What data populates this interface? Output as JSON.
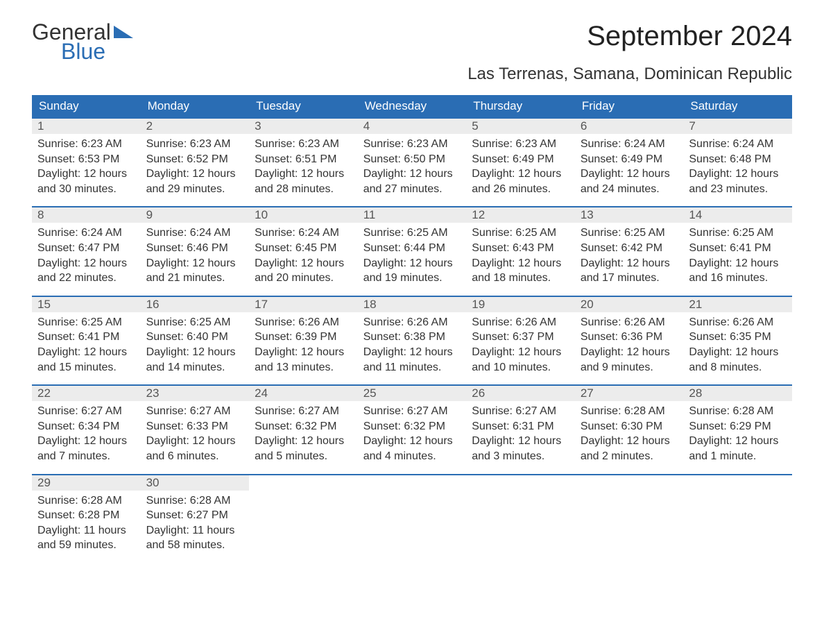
{
  "brand": {
    "part1": "General",
    "part2": "Blue",
    "text_color": "#333333",
    "accent_color": "#2a6db4"
  },
  "header": {
    "month_title": "September 2024",
    "location": "Las Terrenas, Samana, Dominican Republic",
    "title_fontsize": 40,
    "location_fontsize": 24
  },
  "colors": {
    "header_bg": "#2a6db4",
    "header_text": "#ffffff",
    "daynum_bg": "#ececec",
    "border_top": "#2a6db4",
    "body_text": "#333333",
    "background": "#ffffff"
  },
  "calendar": {
    "type": "table",
    "columns": [
      "Sunday",
      "Monday",
      "Tuesday",
      "Wednesday",
      "Thursday",
      "Friday",
      "Saturday"
    ],
    "weeks": [
      [
        {
          "day": "1",
          "sunrise": "Sunrise: 6:23 AM",
          "sunset": "Sunset: 6:53 PM",
          "dl1": "Daylight: 12 hours",
          "dl2": "and 30 minutes."
        },
        {
          "day": "2",
          "sunrise": "Sunrise: 6:23 AM",
          "sunset": "Sunset: 6:52 PM",
          "dl1": "Daylight: 12 hours",
          "dl2": "and 29 minutes."
        },
        {
          "day": "3",
          "sunrise": "Sunrise: 6:23 AM",
          "sunset": "Sunset: 6:51 PM",
          "dl1": "Daylight: 12 hours",
          "dl2": "and 28 minutes."
        },
        {
          "day": "4",
          "sunrise": "Sunrise: 6:23 AM",
          "sunset": "Sunset: 6:50 PM",
          "dl1": "Daylight: 12 hours",
          "dl2": "and 27 minutes."
        },
        {
          "day": "5",
          "sunrise": "Sunrise: 6:23 AM",
          "sunset": "Sunset: 6:49 PM",
          "dl1": "Daylight: 12 hours",
          "dl2": "and 26 minutes."
        },
        {
          "day": "6",
          "sunrise": "Sunrise: 6:24 AM",
          "sunset": "Sunset: 6:49 PM",
          "dl1": "Daylight: 12 hours",
          "dl2": "and 24 minutes."
        },
        {
          "day": "7",
          "sunrise": "Sunrise: 6:24 AM",
          "sunset": "Sunset: 6:48 PM",
          "dl1": "Daylight: 12 hours",
          "dl2": "and 23 minutes."
        }
      ],
      [
        {
          "day": "8",
          "sunrise": "Sunrise: 6:24 AM",
          "sunset": "Sunset: 6:47 PM",
          "dl1": "Daylight: 12 hours",
          "dl2": "and 22 minutes."
        },
        {
          "day": "9",
          "sunrise": "Sunrise: 6:24 AM",
          "sunset": "Sunset: 6:46 PM",
          "dl1": "Daylight: 12 hours",
          "dl2": "and 21 minutes."
        },
        {
          "day": "10",
          "sunrise": "Sunrise: 6:24 AM",
          "sunset": "Sunset: 6:45 PM",
          "dl1": "Daylight: 12 hours",
          "dl2": "and 20 minutes."
        },
        {
          "day": "11",
          "sunrise": "Sunrise: 6:25 AM",
          "sunset": "Sunset: 6:44 PM",
          "dl1": "Daylight: 12 hours",
          "dl2": "and 19 minutes."
        },
        {
          "day": "12",
          "sunrise": "Sunrise: 6:25 AM",
          "sunset": "Sunset: 6:43 PM",
          "dl1": "Daylight: 12 hours",
          "dl2": "and 18 minutes."
        },
        {
          "day": "13",
          "sunrise": "Sunrise: 6:25 AM",
          "sunset": "Sunset: 6:42 PM",
          "dl1": "Daylight: 12 hours",
          "dl2": "and 17 minutes."
        },
        {
          "day": "14",
          "sunrise": "Sunrise: 6:25 AM",
          "sunset": "Sunset: 6:41 PM",
          "dl1": "Daylight: 12 hours",
          "dl2": "and 16 minutes."
        }
      ],
      [
        {
          "day": "15",
          "sunrise": "Sunrise: 6:25 AM",
          "sunset": "Sunset: 6:41 PM",
          "dl1": "Daylight: 12 hours",
          "dl2": "and 15 minutes."
        },
        {
          "day": "16",
          "sunrise": "Sunrise: 6:25 AM",
          "sunset": "Sunset: 6:40 PM",
          "dl1": "Daylight: 12 hours",
          "dl2": "and 14 minutes."
        },
        {
          "day": "17",
          "sunrise": "Sunrise: 6:26 AM",
          "sunset": "Sunset: 6:39 PM",
          "dl1": "Daylight: 12 hours",
          "dl2": "and 13 minutes."
        },
        {
          "day": "18",
          "sunrise": "Sunrise: 6:26 AM",
          "sunset": "Sunset: 6:38 PM",
          "dl1": "Daylight: 12 hours",
          "dl2": "and 11 minutes."
        },
        {
          "day": "19",
          "sunrise": "Sunrise: 6:26 AM",
          "sunset": "Sunset: 6:37 PM",
          "dl1": "Daylight: 12 hours",
          "dl2": "and 10 minutes."
        },
        {
          "day": "20",
          "sunrise": "Sunrise: 6:26 AM",
          "sunset": "Sunset: 6:36 PM",
          "dl1": "Daylight: 12 hours",
          "dl2": "and 9 minutes."
        },
        {
          "day": "21",
          "sunrise": "Sunrise: 6:26 AM",
          "sunset": "Sunset: 6:35 PM",
          "dl1": "Daylight: 12 hours",
          "dl2": "and 8 minutes."
        }
      ],
      [
        {
          "day": "22",
          "sunrise": "Sunrise: 6:27 AM",
          "sunset": "Sunset: 6:34 PM",
          "dl1": "Daylight: 12 hours",
          "dl2": "and 7 minutes."
        },
        {
          "day": "23",
          "sunrise": "Sunrise: 6:27 AM",
          "sunset": "Sunset: 6:33 PM",
          "dl1": "Daylight: 12 hours",
          "dl2": "and 6 minutes."
        },
        {
          "day": "24",
          "sunrise": "Sunrise: 6:27 AM",
          "sunset": "Sunset: 6:32 PM",
          "dl1": "Daylight: 12 hours",
          "dl2": "and 5 minutes."
        },
        {
          "day": "25",
          "sunrise": "Sunrise: 6:27 AM",
          "sunset": "Sunset: 6:32 PM",
          "dl1": "Daylight: 12 hours",
          "dl2": "and 4 minutes."
        },
        {
          "day": "26",
          "sunrise": "Sunrise: 6:27 AM",
          "sunset": "Sunset: 6:31 PM",
          "dl1": "Daylight: 12 hours",
          "dl2": "and 3 minutes."
        },
        {
          "day": "27",
          "sunrise": "Sunrise: 6:28 AM",
          "sunset": "Sunset: 6:30 PM",
          "dl1": "Daylight: 12 hours",
          "dl2": "and 2 minutes."
        },
        {
          "day": "28",
          "sunrise": "Sunrise: 6:28 AM",
          "sunset": "Sunset: 6:29 PM",
          "dl1": "Daylight: 12 hours",
          "dl2": "and 1 minute."
        }
      ],
      [
        {
          "day": "29",
          "sunrise": "Sunrise: 6:28 AM",
          "sunset": "Sunset: 6:28 PM",
          "dl1": "Daylight: 11 hours",
          "dl2": "and 59 minutes."
        },
        {
          "day": "30",
          "sunrise": "Sunrise: 6:28 AM",
          "sunset": "Sunset: 6:27 PM",
          "dl1": "Daylight: 11 hours",
          "dl2": "and 58 minutes."
        },
        null,
        null,
        null,
        null,
        null
      ]
    ]
  }
}
